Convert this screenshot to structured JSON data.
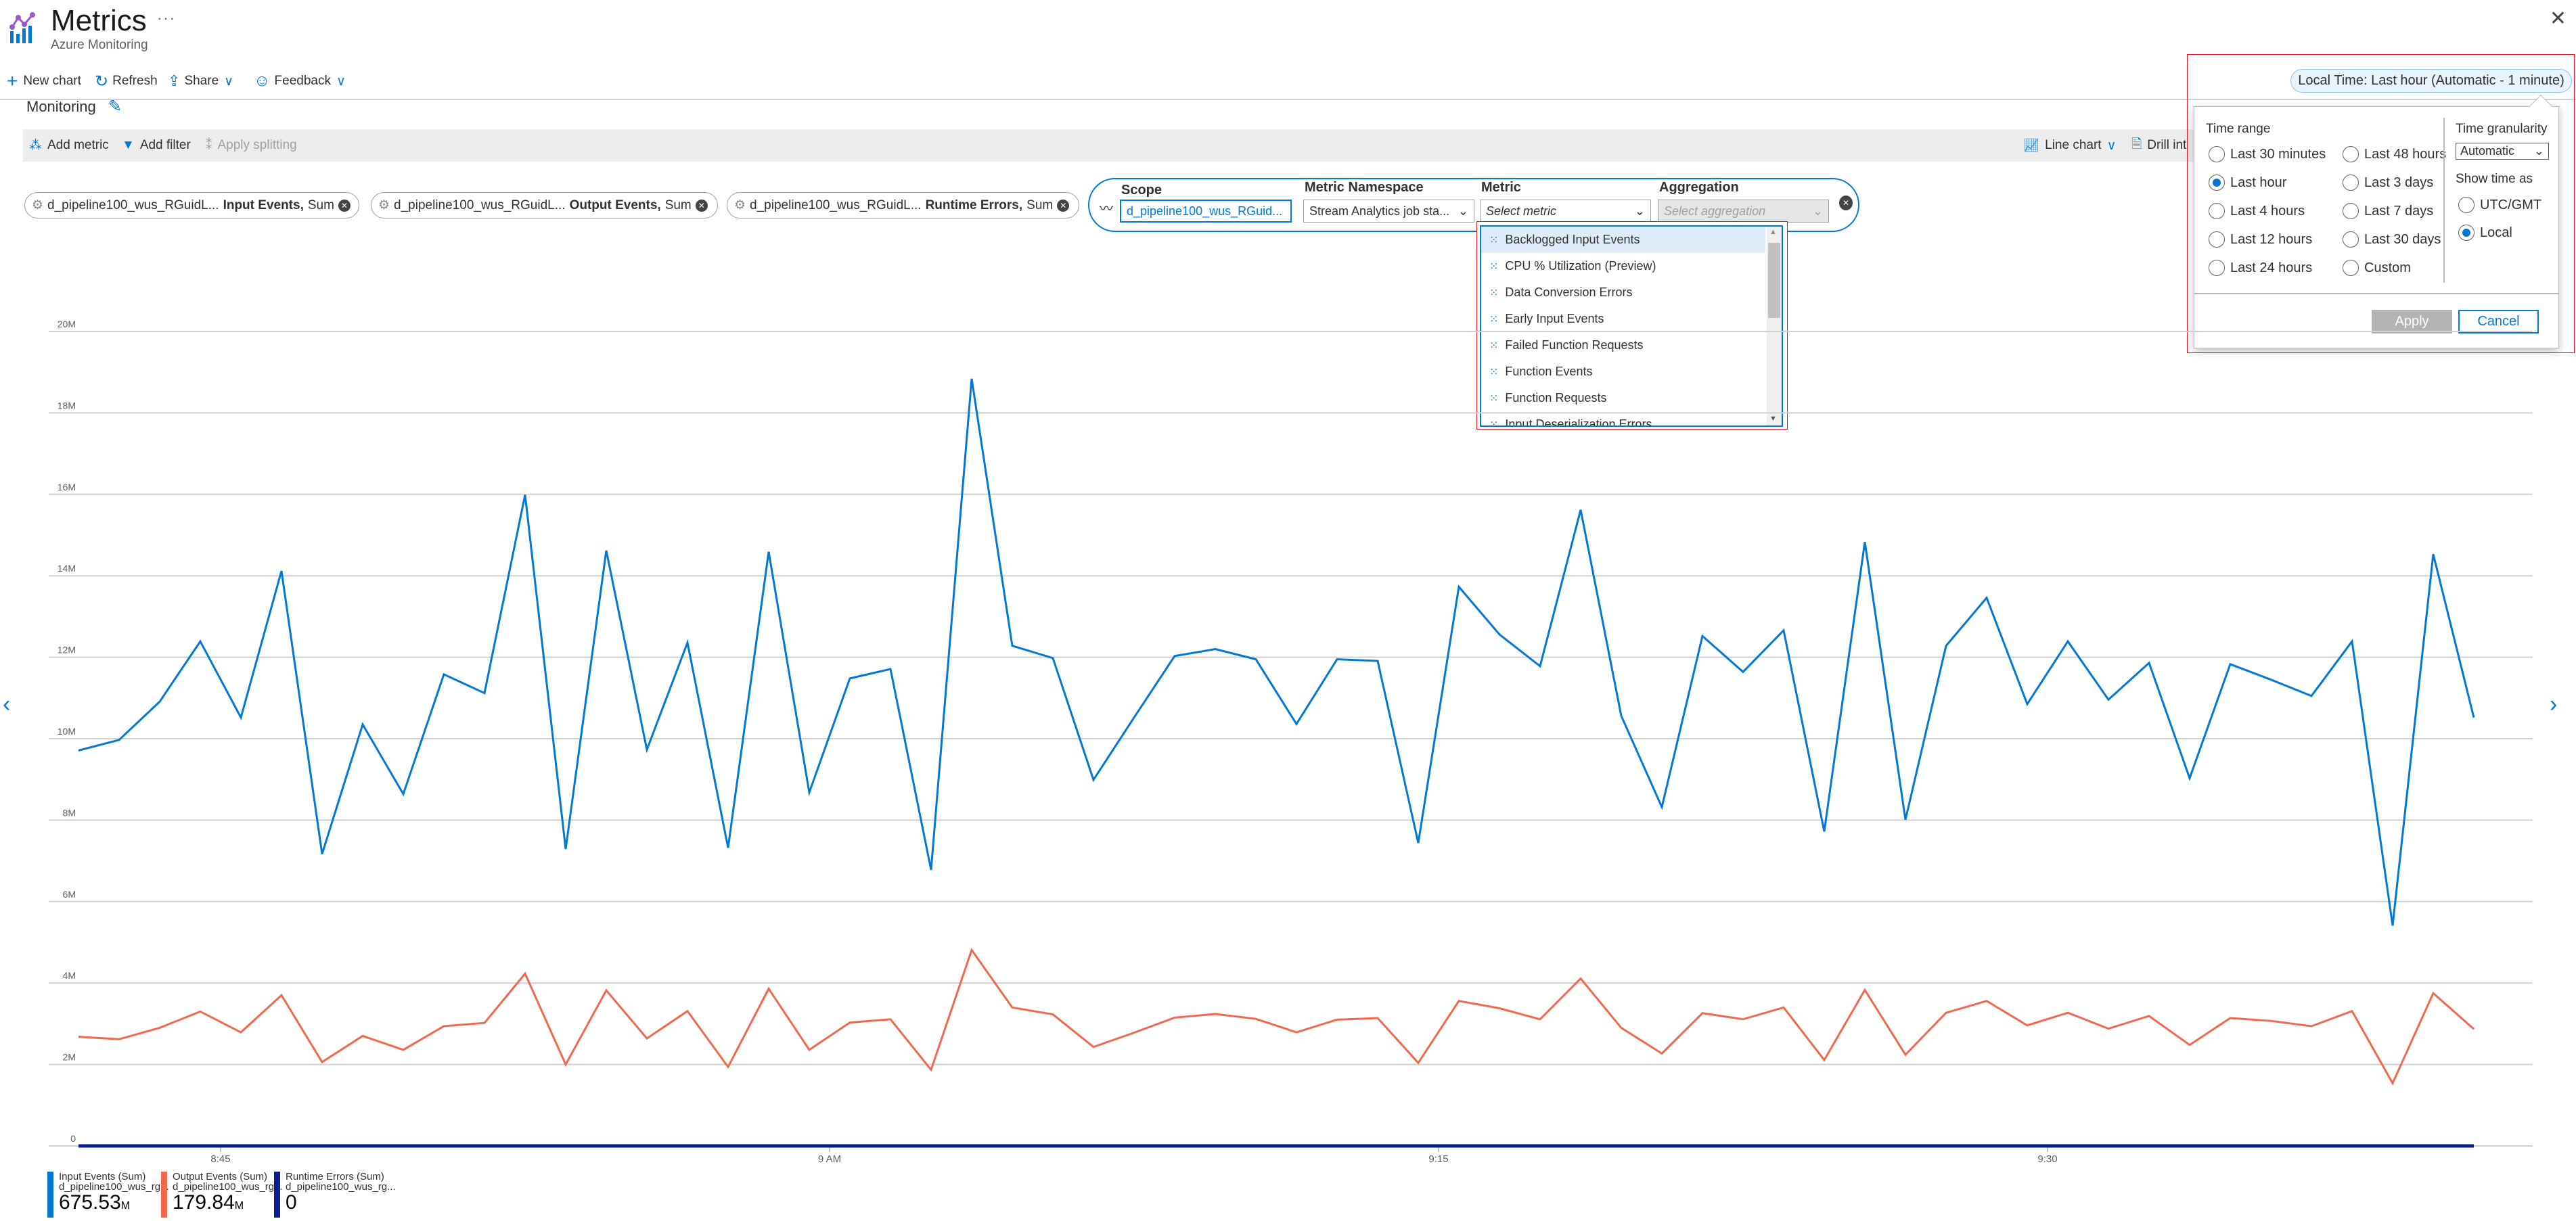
{
  "header": {
    "title": "Metrics",
    "subtitle": "Azure Monitoring",
    "more": "···",
    "close": "✕"
  },
  "toolbar": {
    "new_chart": "New chart",
    "refresh": "Refresh",
    "share": "Share",
    "feedback": "Feedback"
  },
  "chart_title": "Monitoring",
  "chart_toolbar": {
    "add_metric": "Add metric",
    "add_filter": "Add filter",
    "apply_splitting": "Apply splitting",
    "line_chart": "Line chart",
    "drill_into": "Drill int"
  },
  "metric_pills": [
    {
      "resource": "d_pipeline100_wus_RGuidL...",
      "metric": "Input Events,",
      "agg": "Sum"
    },
    {
      "resource": "d_pipeline100_wus_RGuidL...",
      "metric": "Output Events,",
      "agg": "Sum"
    },
    {
      "resource": "d_pipeline100_wus_RGuidL...",
      "metric": "Runtime Errors,",
      "agg": "Sum"
    }
  ],
  "editor": {
    "scope_label": "Scope",
    "scope_value": "d_pipeline100_wus_RGuid...",
    "namespace_label": "Metric Namespace",
    "namespace_value": "Stream Analytics job sta...",
    "metric_label": "Metric",
    "metric_placeholder": "Select metric",
    "aggregation_label": "Aggregation",
    "aggregation_placeholder": "Select aggregation"
  },
  "metric_options": [
    "Backlogged Input Events",
    "CPU % Utilization (Preview)",
    "Data Conversion Errors",
    "Early Input Events",
    "Failed Function Requests",
    "Function Events",
    "Function Requests",
    "Input Deserialization Errors"
  ],
  "time_picker": {
    "pill": "Local Time: Last hour (Automatic - 1 minute)",
    "time_range_label": "Time range",
    "ranges": [
      "Last 30 minutes",
      "Last hour",
      "Last 4 hours",
      "Last 12 hours",
      "Last 24 hours",
      "Last 48 hours",
      "Last 3 days",
      "Last 7 days",
      "Last 30 days",
      "Custom"
    ],
    "selected_range": "Last hour",
    "granularity_label": "Time granularity",
    "granularity_value": "Automatic",
    "show_time_label": "Show time as",
    "time_modes": [
      "UTC/GMT",
      "Local"
    ],
    "selected_mode": "Local",
    "apply": "Apply",
    "cancel": "Cancel"
  },
  "legend": [
    {
      "name": "Input Events (Sum)",
      "resource": "d_pipeline100_wus_rg...",
      "value": "675.53",
      "unit": "M",
      "color": "#0078d4"
    },
    {
      "name": "Output Events (Sum)",
      "resource": "d_pipeline100_wus_rg...",
      "value": "179.84",
      "unit": "M",
      "color": "#f0694f"
    },
    {
      "name": "Runtime Errors (Sum)",
      "resource": "d_pipeline100_wus_rg...",
      "value": "0",
      "unit": "",
      "color": "#0a1d8c"
    }
  ],
  "chart_data": {
    "type": "line",
    "ylim": [
      0,
      20000000
    ],
    "y_ticks": [
      0,
      2000000,
      4000000,
      6000000,
      8000000,
      10000000,
      12000000,
      14000000,
      16000000,
      18000000,
      20000000
    ],
    "y_tick_labels": [
      "0",
      "2M",
      "4M",
      "6M",
      "8M",
      "10M",
      "12M",
      "14M",
      "16M",
      "18M",
      "20M"
    ],
    "x_ticks": [
      "8:45",
      "9:00",
      "9:15",
      "9:30"
    ],
    "x_tick_labels": [
      "8:45",
      "9 AM",
      "9:15",
      "9:30"
    ],
    "grid": true,
    "x": [
      "8:42",
      "8:43",
      "8:44",
      "8:45",
      "8:46",
      "8:47",
      "8:48",
      "8:49",
      "8:50",
      "8:51",
      "8:52",
      "8:53",
      "8:54",
      "8:55",
      "8:56",
      "8:57",
      "8:58",
      "8:59",
      "9:00",
      "9:01",
      "9:02",
      "9:03",
      "9:04",
      "9:05",
      "9:06",
      "9:07",
      "9:08",
      "9:09",
      "9:10",
      "9:11",
      "9:12",
      "9:13",
      "9:14",
      "9:15",
      "9:16",
      "9:17",
      "9:18",
      "9:19",
      "9:20",
      "9:21",
      "9:22",
      "9:23",
      "9:24",
      "9:25",
      "9:26",
      "9:27",
      "9:28",
      "9:29",
      "9:30",
      "9:31",
      "9:32",
      "9:33",
      "9:34",
      "9:35",
      "9:36",
      "9:37",
      "9:38",
      "9:39",
      "9:40",
      "9:41"
    ],
    "series": [
      {
        "name": "Input Events (Sum)",
        "color": "#0078d4",
        "values": [
          9.71,
          9.97,
          10.91,
          12.39,
          10.52,
          14.12,
          7.17,
          10.35,
          8.64,
          11.58,
          11.12,
          15.99,
          7.29,
          14.62,
          9.73,
          12.36,
          7.32,
          14.59,
          8.68,
          11.48,
          11.71,
          6.78,
          18.84,
          12.28,
          11.98,
          8.99,
          10.52,
          12.03,
          12.2,
          11.95,
          10.36,
          11.95,
          11.91,
          7.44,
          13.73,
          12.56,
          11.78,
          15.62,
          10.56,
          8.32,
          12.52,
          11.64,
          12.66,
          7.72,
          14.83,
          8.01,
          12.28,
          13.46,
          10.85,
          12.39,
          10.96,
          11.86,
          9.03,
          11.83,
          11.45,
          11.05,
          12.39,
          5.41,
          14.53,
          10.52
        ],
        "unit_multiplier": 1000000
      },
      {
        "name": "Output Events (Sum)",
        "color": "#f0694f",
        "values": [
          2.68,
          2.62,
          2.9,
          3.3,
          2.79,
          3.7,
          2.06,
          2.7,
          2.36,
          2.94,
          3.02,
          4.23,
          2.0,
          3.82,
          2.64,
          3.31,
          1.94,
          3.86,
          2.36,
          3.03,
          3.11,
          1.87,
          4.81,
          3.4,
          3.23,
          2.43,
          2.78,
          3.15,
          3.24,
          3.12,
          2.79,
          3.1,
          3.14,
          2.04,
          3.56,
          3.38,
          3.11,
          4.11,
          2.9,
          2.27,
          3.26,
          3.11,
          3.4,
          2.11,
          3.83,
          2.24,
          3.27,
          3.56,
          2.96,
          3.27,
          2.88,
          3.19,
          2.48,
          3.14,
          3.07,
          2.94,
          3.31,
          1.54,
          3.75,
          2.87
        ],
        "unit_multiplier": 1000000
      },
      {
        "name": "Runtime Errors (Sum)",
        "color": "#0a1d8c",
        "values": [
          0,
          0,
          0,
          0,
          0,
          0,
          0,
          0,
          0,
          0,
          0,
          0,
          0,
          0,
          0,
          0,
          0,
          0,
          0,
          0,
          0,
          0,
          0,
          0,
          0,
          0,
          0,
          0,
          0,
          0,
          0,
          0,
          0,
          0,
          0,
          0,
          0,
          0,
          0,
          0,
          0,
          0,
          0,
          0,
          0,
          0,
          0,
          0,
          0,
          0,
          0,
          0,
          0,
          0,
          0,
          0,
          0,
          0,
          0,
          0
        ],
        "unit_multiplier": 1000000
      }
    ]
  }
}
